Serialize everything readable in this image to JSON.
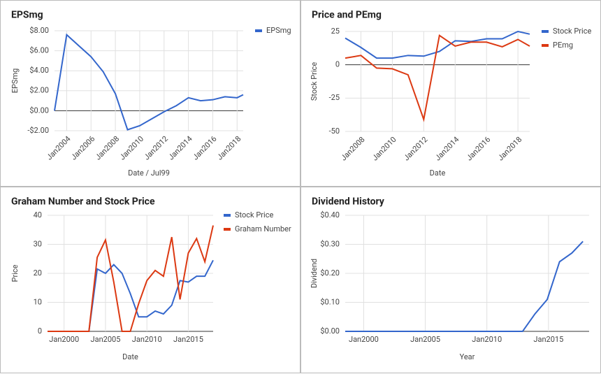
{
  "chart_data": [
    {
      "type": "line",
      "title": "EPSmg",
      "x_label": "Date / Jul99",
      "y_label": "EPSmg",
      "x": [
        2003,
        2004,
        2005,
        2006,
        2007,
        2008,
        2009,
        2010,
        2011,
        2012,
        2013,
        2014,
        2015,
        2016,
        2017,
        2018,
        2018.5
      ],
      "series": [
        {
          "name": "EPSmg",
          "color": "#3366cc",
          "values": [
            0,
            7.6,
            6.5,
            5.4,
            3.9,
            1.7,
            -1.9,
            -1.5,
            -0.8,
            -0.1,
            0.5,
            1.3,
            1.0,
            1.1,
            1.4,
            1.3,
            1.6
          ]
        }
      ],
      "xlim": [
        2003,
        2018.5
      ],
      "xticks": [
        {
          "value": 2004,
          "label": "Jan2004"
        },
        {
          "value": 2006,
          "label": "Jan2006"
        },
        {
          "value": 2008,
          "label": "Jan2008"
        },
        {
          "value": 2010,
          "label": "Jan2010"
        },
        {
          "value": 2012,
          "label": "Jan2012"
        },
        {
          "value": 2014,
          "label": "Jan2014"
        },
        {
          "value": 2016,
          "label": "Jan2016"
        },
        {
          "value": 2018,
          "label": "Jan2018"
        }
      ],
      "ylim": [
        -2,
        8
      ],
      "yticks": [
        {
          "value": -2,
          "label": "-$2.00"
        },
        {
          "value": 0,
          "label": "$0.00"
        },
        {
          "value": 2,
          "label": "$2.00"
        },
        {
          "value": 4,
          "label": "$4.00"
        },
        {
          "value": 6,
          "label": "$6.00"
        },
        {
          "value": 8,
          "label": "$8.00"
        }
      ],
      "grid": true
    },
    {
      "type": "line",
      "title": "Price and PEmg",
      "x_label": "Date",
      "y_label": "Stock Price",
      "x": [
        2007,
        2008,
        2009,
        2010,
        2011,
        2012,
        2013,
        2014,
        2015,
        2016,
        2017,
        2018,
        2018.75
      ],
      "series": [
        {
          "name": "Stock Price",
          "color": "#3366cc",
          "values": [
            20,
            13,
            5,
            5,
            7,
            6.5,
            10,
            18,
            17.5,
            19.5,
            19.5,
            25,
            23
          ]
        },
        {
          "name": "PEmg",
          "color": "#dc3912",
          "values": [
            5,
            7,
            -2.5,
            -3,
            -7.5,
            -41,
            22,
            14,
            17,
            17,
            13.5,
            19,
            14
          ]
        }
      ],
      "xlim": [
        2007,
        2018.75
      ],
      "xticks": [
        {
          "value": 2008,
          "label": "Jan2008"
        },
        {
          "value": 2010,
          "label": "Jan2010"
        },
        {
          "value": 2012,
          "label": "Jan2012"
        },
        {
          "value": 2014,
          "label": "Jan2014"
        },
        {
          "value": 2016,
          "label": "Jan2016"
        },
        {
          "value": 2018,
          "label": "Jan2018"
        }
      ],
      "ylim": [
        -50,
        25
      ],
      "yticks": [
        -50,
        -25,
        0,
        25
      ],
      "grid": true
    },
    {
      "type": "line",
      "title": "Graham Number and Stock Price",
      "x_label": "Date",
      "y_label": "Price",
      "x": [
        1998,
        1999,
        2000,
        2001,
        2002,
        2003,
        2004,
        2005,
        2006,
        2007,
        2008,
        2009,
        2010,
        2011,
        2012,
        2013,
        2014,
        2015,
        2016,
        2017,
        2018
      ],
      "series": [
        {
          "name": "Stock Price",
          "color": "#3366cc",
          "values": [
            0,
            0,
            0,
            0,
            0,
            0,
            21.5,
            20,
            23,
            20,
            13,
            5,
            5,
            7,
            6,
            9,
            17.5,
            17,
            19,
            19,
            24.5
          ]
        },
        {
          "name": "Graham Number",
          "color": "#dc3912",
          "values": [
            0,
            0,
            0,
            0,
            0,
            0,
            25.5,
            31.5,
            17,
            0,
            0,
            9.5,
            17.5,
            21,
            19,
            32.5,
            11,
            27,
            32,
            24,
            36.5
          ]
        }
      ],
      "xlim": [
        1998,
        2018
      ],
      "xticks": [
        {
          "value": 2000,
          "label": "Jan2000"
        },
        {
          "value": 2005,
          "label": "Jan2005"
        },
        {
          "value": 2010,
          "label": "Jan2010"
        },
        {
          "value": 2015,
          "label": "Jan2015"
        }
      ],
      "ylim": [
        0,
        40
      ],
      "yticks": [
        0,
        10,
        20,
        30,
        40
      ],
      "grid": true
    },
    {
      "type": "line",
      "title": "Dividend History",
      "x_label": "Year",
      "y_label": "Dividend",
      "x": [
        1998.5,
        2012.9,
        2013.9,
        2014.9,
        2015.9,
        2016.9,
        2017.8
      ],
      "values": [
        0,
        0,
        0.06,
        0.11,
        0.24,
        0.27,
        0.31
      ],
      "color": "#3366cc",
      "xlim": [
        1998.5,
        2018.3
      ],
      "xticks": [
        {
          "value": 2000,
          "label": "Jan2000"
        },
        {
          "value": 2005,
          "label": "Jan2005"
        },
        {
          "value": 2010,
          "label": "Jan2010"
        },
        {
          "value": 2015,
          "label": "Jan2015"
        }
      ],
      "ylim": [
        0,
        0.4
      ],
      "yticks": [
        {
          "value": 0,
          "label": "$0.00"
        },
        {
          "value": 0.1,
          "label": "$0.10"
        },
        {
          "value": 0.2,
          "label": "$0.20"
        },
        {
          "value": 0.3,
          "label": "$0.30"
        },
        {
          "value": 0.4,
          "label": "$0.40"
        }
      ],
      "grid": true
    }
  ]
}
